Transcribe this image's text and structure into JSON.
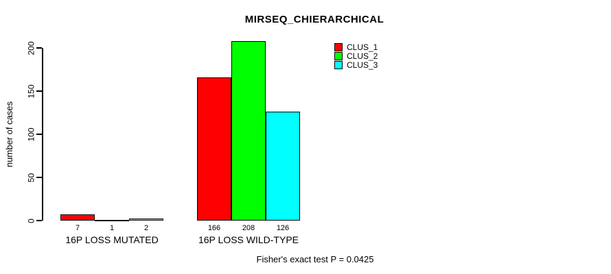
{
  "chart_data": {
    "type": "bar",
    "title": "MIRSEQ_CHIERARCHICAL",
    "ylabel": "number of cases",
    "xlabel": "",
    "categories": [
      "16P LOSS MUTATED",
      "16P LOSS WILD-TYPE"
    ],
    "series": [
      {
        "name": "CLUS_1",
        "color": "#ff0000",
        "values": [
          7,
          166
        ]
      },
      {
        "name": "CLUS_2",
        "color": "#00ff00",
        "values": [
          1,
          208
        ]
      },
      {
        "name": "CLUS_3",
        "color": "#00ffff",
        "values": [
          2,
          126
        ]
      }
    ],
    "yticks": [
      0,
      50,
      100,
      150,
      200
    ],
    "ylim": [
      0,
      215
    ],
    "grid": false,
    "bar_border_color": "#000000",
    "axis_color": "#000000",
    "background_color": "#ffffff",
    "legend": {
      "position": "top-right",
      "entries": [
        {
          "label": "CLUS_1",
          "color": "#ff0000"
        },
        {
          "label": "CLUS_2",
          "color": "#00ff00"
        },
        {
          "label": "CLUS_3",
          "color": "#00ffff"
        }
      ]
    },
    "annotation": "Fisher's exact test P = 0.0425"
  }
}
